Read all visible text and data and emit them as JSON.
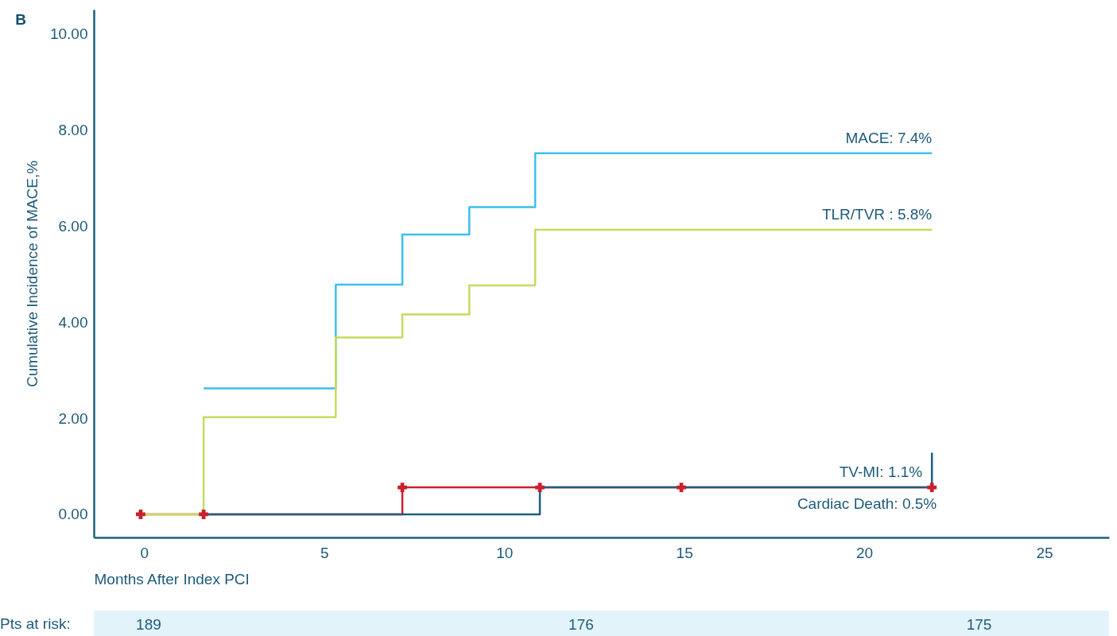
{
  "chart_data": {
    "type": "step",
    "xlabel": "Months After Index PCI",
    "ylabel": "Cumulative Incidence of MACE,%",
    "xlim": [
      -1.4,
      26.8
    ],
    "ylim": [
      -0.48,
      10.5
    ],
    "xticks": [
      0,
      5,
      10,
      15,
      20,
      25
    ],
    "yticks": [
      {
        "value": 0,
        "label": "0.00"
      },
      {
        "value": 2,
        "label": "2.00"
      },
      {
        "value": 4,
        "label": "4.00"
      },
      {
        "value": 6,
        "label": "6.00"
      },
      {
        "value": 8,
        "label": "8.00"
      },
      {
        "value": 10,
        "label": "10.00"
      }
    ],
    "grid": false,
    "series": [
      {
        "name": "MACE: 7.4%",
        "color": "#3cc0eb",
        "marker": "none",
        "x": [
          1.65,
          5.32,
          7.17,
          9.03,
          10.86,
          21.88
        ],
        "values": [
          2.62,
          4.78,
          5.82,
          6.39,
          7.51,
          7.51
        ]
      },
      {
        "name": "TLR/TVR : 5.8%",
        "color": "#c5db5e",
        "marker": "none",
        "x": [
          -0.1,
          1.65,
          5.32,
          7.17,
          9.03,
          10.86,
          21.88
        ],
        "values": [
          0,
          2.02,
          3.68,
          4.16,
          4.76,
          5.92,
          5.92
        ]
      },
      {
        "name": "TV-MI: 1.1%",
        "color": "#c8202f",
        "marker": "cross",
        "x": [
          -0.1,
          1.65,
          7.17,
          10.99,
          14.92,
          21.88
        ],
        "values": [
          0,
          0,
          0.56,
          0.56,
          0.56,
          0.56
        ]
      },
      {
        "name": "Cardiac Death: 0.5%",
        "color": "#1d5f7f",
        "marker": "none",
        "x": [
          1.65,
          10.99,
          21.88,
          21.88
        ],
        "values": [
          0,
          0.56,
          0.56,
          1.28
        ]
      }
    ],
    "annotations": [
      "B",
      "Pts at risk:",
      "189",
      "176",
      "175"
    ]
  }
}
